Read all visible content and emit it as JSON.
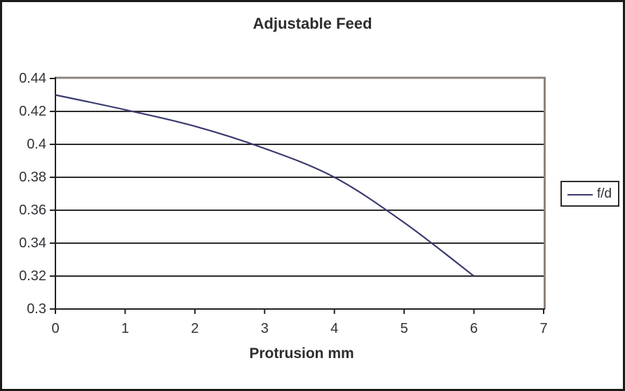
{
  "chart_data": {
    "type": "line",
    "title": "Adjustable Feed",
    "xlabel": "Protrusion mm",
    "ylabel": "",
    "xlim": [
      0,
      7
    ],
    "ylim": [
      0.3,
      0.44
    ],
    "x_ticks": [
      0,
      1,
      2,
      3,
      4,
      5,
      6,
      7
    ],
    "y_ticks": [
      "0.44",
      "0.42",
      "0.4",
      "0.38",
      "0.36",
      "0.34",
      "0.32",
      "0.3"
    ],
    "grid": "horizontal",
    "legend_position": "right",
    "smoothed": true,
    "series": [
      {
        "name": "f/d",
        "x": [
          0,
          1,
          2,
          3,
          4,
          5,
          6
        ],
        "values": [
          0.43,
          0.421,
          0.411,
          0.3975,
          0.38,
          0.3525,
          0.32
        ]
      }
    ]
  },
  "colors": {
    "series_line": "#3a3a70",
    "gridline": "#2b2b2b",
    "axis": "#222222",
    "plot_border": "#8e837c",
    "figure_border": "#1b1b1b",
    "text": "#333338",
    "background": "#ffffff"
  }
}
